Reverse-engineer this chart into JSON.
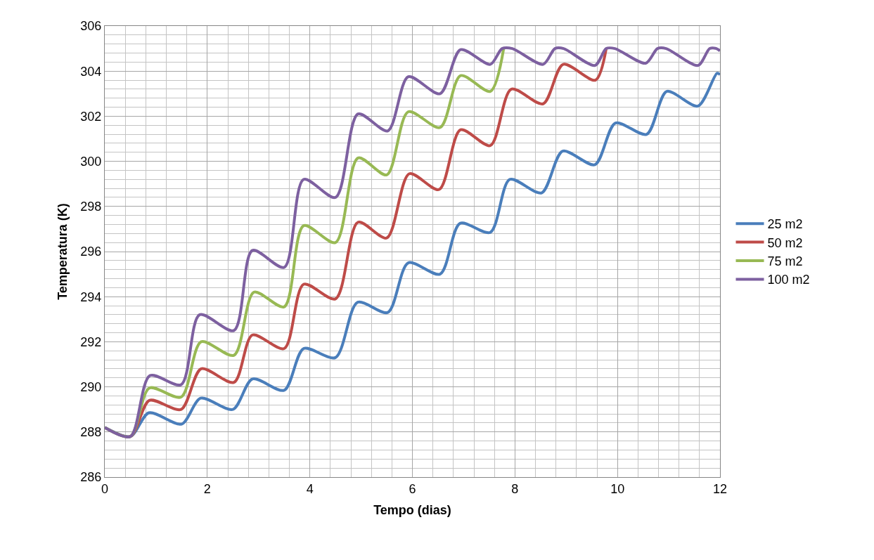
{
  "chart_data": {
    "type": "line",
    "xlabel": "Tempo (dias)",
    "ylabel": "Temperatura (K)",
    "xlim": [
      0,
      12
    ],
    "xticks": [
      0,
      2,
      4,
      6,
      8,
      10,
      12
    ],
    "ylim": [
      286,
      306
    ],
    "yticks": [
      286,
      288,
      290,
      292,
      294,
      296,
      298,
      300,
      302,
      304,
      306
    ],
    "grid": true,
    "legend": "right",
    "marker": "none",
    "line_style": "solid",
    "series": [
      {
        "name": "25 m2",
        "color": "#4a7ebb",
        "x": [
          0,
          0.5,
          0.86,
          1.5,
          1.87,
          2.5,
          2.88,
          3.5,
          3.88,
          4.5,
          4.93,
          5.52,
          5.92,
          6.54,
          6.93,
          7.52,
          7.9,
          8.52,
          8.93,
          9.56,
          9.96,
          10.57,
          10.96,
          11.57,
          11.94,
          12
        ],
        "values": [
          288.2,
          287.8,
          288.85,
          288.35,
          289.5,
          289.0,
          290.35,
          289.85,
          291.7,
          291.3,
          293.75,
          293.3,
          295.5,
          295.0,
          297.25,
          296.85,
          299.2,
          298.6,
          300.45,
          299.85,
          301.7,
          301.2,
          303.1,
          302.45,
          303.9,
          303.85
        ]
      },
      {
        "name": "50 m2",
        "color": "#be4b48",
        "x": [
          0,
          0.5,
          0.87,
          1.49,
          1.88,
          2.52,
          2.88,
          3.5,
          3.88,
          4.5,
          4.94,
          5.5,
          5.94,
          6.52,
          6.94,
          7.52,
          7.93,
          8.55,
          8.94,
          9.57,
          9.78
        ],
        "values": [
          288.2,
          287.8,
          289.4,
          289.0,
          290.8,
          290.2,
          292.3,
          291.7,
          294.55,
          293.9,
          297.3,
          296.6,
          299.45,
          298.75,
          301.4,
          300.7,
          303.2,
          302.55,
          304.3,
          303.6,
          305.0
        ]
      },
      {
        "name": "75 m2",
        "color": "#98b954",
        "x": [
          0,
          0.5,
          0.87,
          1.49,
          1.88,
          2.52,
          2.91,
          3.5,
          3.88,
          4.5,
          4.94,
          5.5,
          5.92,
          6.54,
          6.94,
          7.52,
          7.78
        ],
        "values": [
          288.2,
          287.8,
          289.95,
          289.55,
          292.0,
          291.4,
          294.2,
          293.55,
          297.15,
          296.4,
          300.15,
          299.4,
          302.2,
          301.5,
          303.8,
          303.1,
          305.0
        ]
      },
      {
        "name": "100 m2",
        "color": "#7d60a0",
        "x": [
          0,
          0.5,
          0.88,
          1.49,
          1.85,
          2.52,
          2.88,
          3.5,
          3.88,
          4.5,
          4.94,
          5.52,
          5.92,
          6.54,
          6.94,
          7.52,
          7.75,
          7.95,
          8.55,
          8.78,
          8.95,
          9.56,
          9.78,
          9.95,
          10.55,
          10.78,
          10.95,
          11.57,
          11.8,
          11.93,
          12
        ],
        "values": [
          288.2,
          287.8,
          290.5,
          290.1,
          293.2,
          292.5,
          296.05,
          295.3,
          299.2,
          298.4,
          302.1,
          301.35,
          303.75,
          303.0,
          304.95,
          304.3,
          305,
          305,
          304.3,
          305,
          305,
          304.25,
          305,
          305,
          304.35,
          305,
          305,
          304.25,
          305,
          305,
          304.9
        ]
      }
    ]
  }
}
